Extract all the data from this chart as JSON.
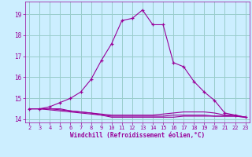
{
  "xlabel": "Windchill (Refroidissement éolien,°C)",
  "x": [
    2,
    3,
    4,
    5,
    6,
    7,
    8,
    9,
    10,
    11,
    12,
    13,
    14,
    15,
    16,
    17,
    18,
    19,
    20,
    21,
    22,
    23
  ],
  "line1": [
    14.5,
    14.5,
    14.6,
    14.8,
    15.0,
    15.3,
    15.9,
    16.8,
    17.6,
    18.7,
    18.8,
    19.2,
    18.5,
    18.5,
    16.7,
    16.5,
    15.8,
    15.3,
    14.9,
    14.3,
    14.2,
    14.1
  ],
  "line2": [
    14.5,
    14.5,
    14.5,
    14.5,
    14.4,
    14.35,
    14.3,
    14.25,
    14.2,
    14.2,
    14.2,
    14.2,
    14.2,
    14.25,
    14.3,
    14.35,
    14.35,
    14.35,
    14.3,
    14.2,
    14.2,
    14.1
  ],
  "line3": [
    14.5,
    14.5,
    14.45,
    14.4,
    14.35,
    14.3,
    14.25,
    14.2,
    14.15,
    14.15,
    14.15,
    14.15,
    14.15,
    14.15,
    14.2,
    14.2,
    14.2,
    14.2,
    14.15,
    14.15,
    14.15,
    14.1
  ],
  "line4": [
    14.5,
    14.5,
    14.5,
    14.45,
    14.4,
    14.35,
    14.3,
    14.2,
    14.1,
    14.1,
    14.1,
    14.1,
    14.1,
    14.1,
    14.1,
    14.15,
    14.15,
    14.15,
    14.15,
    14.15,
    14.15,
    14.1
  ],
  "line_color": "#990099",
  "bg_color": "#cceeff",
  "grid_color": "#99cccc",
  "ylim": [
    13.85,
    19.6
  ],
  "yticks": [
    14,
    15,
    16,
    17,
    18,
    19
  ],
  "xticks": [
    2,
    3,
    4,
    5,
    6,
    7,
    8,
    9,
    10,
    11,
    12,
    13,
    14,
    15,
    16,
    17,
    18,
    19,
    20,
    21,
    22,
    23
  ]
}
